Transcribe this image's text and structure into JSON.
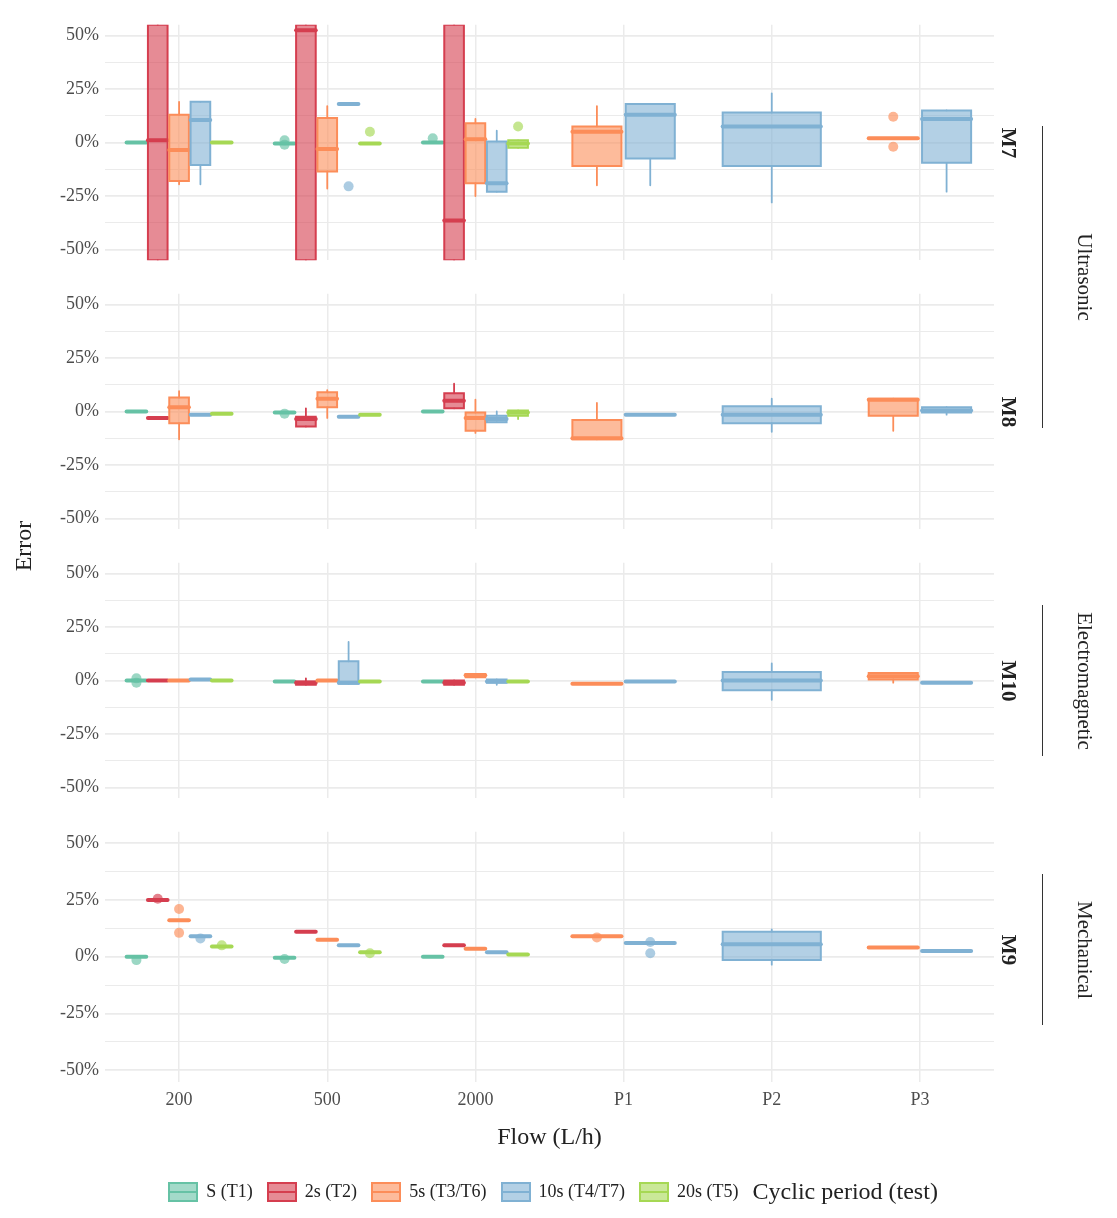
{
  "chart_data": [
    {
      "type": "box",
      "title": "M7",
      "categories": [
        null,
        null,
        null,
        null,
        null,
        null
      ],
      "ylim": [
        -55,
        55
      ],
      "yticks": [
        {
          "value": -50,
          "label": "-50%"
        },
        {
          "value": -37.5,
          "label": null
        },
        {
          "value": -25,
          "label": "-25%"
        },
        {
          "value": -12.5,
          "label": null
        },
        {
          "value": 0,
          "label": "0%"
        },
        {
          "value": 12.5,
          "label": null
        },
        {
          "value": 25,
          "label": "25%"
        },
        {
          "value": 37.5,
          "label": null
        },
        {
          "value": 50,
          "label": "50%"
        }
      ],
      "grid": true,
      "tick_labels": "y",
      "annotations": [
        "Ultrasonic"
      ],
      "series": [
        {
          "color": "#66c2a5",
          "boxes": [
            {
              "low": 0,
              "q1": 0,
              "median": 0,
              "q3": 0,
              "high": 0
            },
            {
              "low": -0.5,
              "q1": -0.5,
              "median": -0.5,
              "q3": -0.5,
              "high": -0.5,
              "outliers": [
                1,
                -1
              ]
            },
            {
              "low": 0,
              "q1": 0,
              "median": 0,
              "q3": 0,
              "high": 0,
              "outliers": [
                2
              ]
            },
            null,
            null,
            null
          ]
        },
        {
          "color": "#d53e4f",
          "boxes": [
            {
              "low": -55,
              "q1": -55,
              "median": 1,
              "q3": 55,
              "high": 55
            },
            {
              "low": -55,
              "q1": -55,
              "median": 52.5,
              "q3": 55,
              "high": 55
            },
            {
              "low": -55,
              "q1": -55,
              "median": -36.5,
              "q3": 55,
              "high": 55
            },
            null,
            null,
            null
          ]
        },
        {
          "color": "#fc8d59",
          "boxes": [
            {
              "low": -19.5,
              "q1": -18,
              "median": -3.5,
              "q3": 13,
              "high": 19
            },
            {
              "low": -21.5,
              "q1": -13.5,
              "median": -3,
              "q3": 11.5,
              "high": 17
            },
            {
              "low": -25,
              "q1": -19,
              "median": 1.5,
              "q3": 9,
              "high": 11
            },
            {
              "low": -20,
              "q1": -11,
              "median": 5,
              "q3": 7.5,
              "high": 17
            },
            null,
            {
              "low": 2,
              "q1": 2,
              "median": 2,
              "q3": 2,
              "high": 2,
              "outliers": [
                12,
                -2
              ]
            }
          ]
        },
        {
          "color": "#80b1d3",
          "boxes": [
            {
              "low": -19.5,
              "q1": -10.5,
              "median": 10.5,
              "q3": 19,
              "high": 19
            },
            {
              "low": 18,
              "q1": 18,
              "median": 18,
              "q3": 18,
              "high": 18,
              "outliers": [
                -20.5
              ]
            },
            {
              "low": -23,
              "q1": -23,
              "median": -19,
              "q3": 0.5,
              "high": 5.5
            },
            {
              "low": -20,
              "q1": -7.5,
              "median": 13,
              "q3": 18,
              "high": 18
            },
            {
              "low": -28,
              "q1": -11,
              "median": 7.5,
              "q3": 14,
              "high": 23
            },
            {
              "low": -23,
              "q1": -9.5,
              "median": 11,
              "q3": 15,
              "high": 15
            }
          ]
        },
        {
          "color": "#a6d854",
          "boxes": [
            {
              "low": 0,
              "q1": 0,
              "median": 0,
              "q3": 0,
              "high": 0
            },
            {
              "low": -0.5,
              "q1": -0.5,
              "median": -0.5,
              "q3": -0.5,
              "high": -0.5,
              "outliers": [
                5
              ]
            },
            {
              "low": -2.5,
              "q1": -2.5,
              "median": -0.5,
              "q3": 1,
              "high": 1,
              "outliers": [
                7.5
              ]
            },
            null,
            null,
            null
          ]
        }
      ]
    },
    {
      "type": "box",
      "title": "M8",
      "categories": [
        null,
        null,
        null,
        null,
        null,
        null
      ],
      "ylim": [
        -55,
        55
      ],
      "yticks": [
        {
          "value": -50,
          "label": "-50%"
        },
        {
          "value": -37.5,
          "label": null
        },
        {
          "value": -25,
          "label": "-25%"
        },
        {
          "value": -12.5,
          "label": null
        },
        {
          "value": 0,
          "label": "0%"
        },
        {
          "value": 12.5,
          "label": null
        },
        {
          "value": 25,
          "label": "25%"
        },
        {
          "value": 37.5,
          "label": null
        },
        {
          "value": 50,
          "label": "50%"
        }
      ],
      "grid": true,
      "tick_labels": "y",
      "ylabel": "Error",
      "series": [
        {
          "color": "#66c2a5",
          "boxes": [
            {
              "low": 0,
              "q1": 0,
              "median": 0,
              "q3": 0,
              "high": 0
            },
            {
              "low": -0.5,
              "q1": -0.5,
              "median": -0.5,
              "q3": -0.5,
              "high": -0.5,
              "outliers": [
                -1
              ]
            },
            {
              "low": 0,
              "q1": 0,
              "median": 0,
              "q3": 0,
              "high": 0
            },
            null,
            null,
            null
          ]
        },
        {
          "color": "#d53e4f",
          "boxes": [
            {
              "low": -3,
              "q1": -3,
              "median": -3,
              "q3": -3,
              "high": -3
            },
            {
              "low": -7,
              "q1": -7,
              "median": -3.5,
              "q3": -2.5,
              "high": 1.5
            },
            {
              "low": 1.5,
              "q1": 1.5,
              "median": 5,
              "q3": 8.5,
              "high": 13
            },
            null,
            null,
            null
          ]
        },
        {
          "color": "#fc8d59",
          "boxes": [
            {
              "low": -13,
              "q1": -5.5,
              "median": 2,
              "q3": 6.5,
              "high": 9.5
            },
            {
              "low": -3,
              "q1": 2,
              "median": 6,
              "q3": 9,
              "high": 10
            },
            {
              "low": -10,
              "q1": -9,
              "median": -3,
              "q3": -0.5,
              "high": 5.5
            },
            {
              "low": -13,
              "q1": -13,
              "median": -12.5,
              "q3": -4,
              "high": 4
            },
            null,
            {
              "low": -9,
              "q1": -2,
              "median": 5.5,
              "q3": 6,
              "high": 6
            }
          ]
        },
        {
          "color": "#80b1d3",
          "boxes": [
            {
              "low": -1.5,
              "q1": -1.5,
              "median": -1.5,
              "q3": -1.5,
              "high": -1.5
            },
            {
              "low": -2.5,
              "q1": -2.5,
              "median": -2.5,
              "q3": -2.5,
              "high": -2.5
            },
            {
              "low": -5,
              "q1": -5,
              "median": -3.5,
              "q3": -2,
              "high": 0
            },
            {
              "low": -1.5,
              "q1": -1.5,
              "median": -1.5,
              "q3": -1.5,
              "high": -1.5
            },
            {
              "low": -9.5,
              "q1": -5.5,
              "median": -1.5,
              "q3": 2.5,
              "high": 6
            },
            {
              "low": -1.5,
              "q1": -0.5,
              "median": 0.5,
              "q3": 2,
              "high": 2
            }
          ]
        },
        {
          "color": "#a6d854",
          "boxes": [
            {
              "low": -1,
              "q1": -1,
              "median": -1,
              "q3": -1,
              "high": -1
            },
            {
              "low": -1.5,
              "q1": -1.5,
              "median": -1.5,
              "q3": -1.5,
              "high": -1.5
            },
            {
              "low": -3.5,
              "q1": -2,
              "median": -0.5,
              "q3": 0.5,
              "high": 0.5
            },
            null,
            null,
            null
          ]
        }
      ]
    },
    {
      "type": "box",
      "title": "M10",
      "categories": [
        null,
        null,
        null,
        null,
        null,
        null
      ],
      "ylim": [
        -55,
        55
      ],
      "yticks": [
        {
          "value": -50,
          "label": "-50%"
        },
        {
          "value": -37.5,
          "label": null
        },
        {
          "value": -25,
          "label": "-25%"
        },
        {
          "value": -12.5,
          "label": null
        },
        {
          "value": 0,
          "label": "0%"
        },
        {
          "value": 12.5,
          "label": null
        },
        {
          "value": 25,
          "label": "25%"
        },
        {
          "value": 37.5,
          "label": null
        },
        {
          "value": 50,
          "label": "50%"
        }
      ],
      "grid": true,
      "tick_labels": "y",
      "annotations": [
        "Electromagnetic"
      ],
      "series": [
        {
          "color": "#66c2a5",
          "boxes": [
            {
              "low": 0,
              "q1": 0,
              "median": 0,
              "q3": 0,
              "high": 0,
              "outliers": [
                1,
                -1
              ]
            },
            {
              "low": -0.5,
              "q1": -0.5,
              "median": -0.5,
              "q3": -0.5,
              "high": -0.5
            },
            {
              "low": -0.5,
              "q1": -0.5,
              "median": -0.5,
              "q3": -0.5,
              "high": -0.5
            },
            null,
            null,
            null
          ]
        },
        {
          "color": "#d53e4f",
          "boxes": [
            {
              "low": 0,
              "q1": 0,
              "median": 0,
              "q3": 0,
              "high": 0
            },
            {
              "low": -2,
              "q1": -2,
              "median": -1,
              "q3": -0.5,
              "high": 1
            },
            {
              "low": -2,
              "q1": -2,
              "median": -1,
              "q3": 0,
              "high": 0
            },
            null,
            null,
            null
          ]
        },
        {
          "color": "#fc8d59",
          "boxes": [
            {
              "low": 0,
              "q1": 0,
              "median": 0,
              "q3": 0,
              "high": 0
            },
            {
              "low": 0,
              "q1": 0,
              "median": 0,
              "q3": 0,
              "high": 0
            },
            {
              "low": 1.5,
              "q1": 1.5,
              "median": 2.5,
              "q3": 3,
              "high": 3
            },
            {
              "low": -1.5,
              "q1": -1.5,
              "median": -1.5,
              "q3": -1.5,
              "high": -1.5
            },
            null,
            {
              "low": -1,
              "q1": 0.5,
              "median": 2,
              "q3": 3.5,
              "high": 3.5
            }
          ]
        },
        {
          "color": "#80b1d3",
          "boxes": [
            {
              "low": 0.5,
              "q1": 0.5,
              "median": 0.5,
              "q3": 0.5,
              "high": 0.5
            },
            {
              "low": -1.5,
              "q1": -1.5,
              "median": -1,
              "q3": 9,
              "high": 18
            },
            {
              "low": -2,
              "q1": -1,
              "median": -0.5,
              "q3": 0.5,
              "high": 0.5
            },
            {
              "low": -0.5,
              "q1": -0.5,
              "median": -0.5,
              "q3": -0.5,
              "high": -0.5
            },
            {
              "low": -9,
              "q1": -4.5,
              "median": 0,
              "q3": 4,
              "high": 8
            },
            {
              "low": -1,
              "q1": -1,
              "median": -1,
              "q3": -1,
              "high": -1
            }
          ]
        },
        {
          "color": "#a6d854",
          "boxes": [
            {
              "low": 0,
              "q1": 0,
              "median": 0,
              "q3": 0,
              "high": 0
            },
            {
              "low": -0.5,
              "q1": -0.5,
              "median": -0.5,
              "q3": -0.5,
              "high": -0.5
            },
            {
              "low": -0.5,
              "q1": -0.5,
              "median": -0.5,
              "q3": -0.5,
              "high": -0.5
            },
            null,
            null,
            null
          ]
        }
      ]
    },
    {
      "type": "box",
      "title": "M9",
      "categories": [
        "200",
        "500",
        "2000",
        "P1",
        "P2",
        "P3"
      ],
      "ylim": [
        -55,
        55
      ],
      "yticks": [
        {
          "value": -50,
          "label": "-50%"
        },
        {
          "value": -37.5,
          "label": null
        },
        {
          "value": -25,
          "label": "-25%"
        },
        {
          "value": -12.5,
          "label": null
        },
        {
          "value": 0,
          "label": "0%"
        },
        {
          "value": 12.5,
          "label": null
        },
        {
          "value": 25,
          "label": "25%"
        },
        {
          "value": 37.5,
          "label": null
        },
        {
          "value": 50,
          "label": "50%"
        }
      ],
      "grid": true,
      "annotations": [
        "Mechanical"
      ],
      "xlabel": "Flow (L/h)",
      "legend": "bottom",
      "legend_title": "Cyclic period (test)",
      "series": [
        {
          "name": "S (T1)",
          "color": "#66c2a5",
          "boxes": [
            {
              "low": 0,
              "q1": 0,
              "median": 0,
              "q3": 0,
              "high": 0,
              "outliers": [
                -1.5
              ]
            },
            {
              "low": -0.5,
              "q1": -0.5,
              "median": -0.5,
              "q3": -0.5,
              "high": -0.5,
              "outliers": [
                -1
              ]
            },
            {
              "low": 0,
              "q1": 0,
              "median": 0,
              "q3": 0,
              "high": 0
            },
            null,
            null,
            null
          ]
        },
        {
          "name": "2s (T2)",
          "color": "#d53e4f",
          "boxes": [
            {
              "low": 25,
              "q1": 25,
              "median": 25,
              "q3": 25,
              "high": 25,
              "outliers": [
                25.5
              ]
            },
            {
              "low": 11,
              "q1": 11,
              "median": 11,
              "q3": 11,
              "high": 11
            },
            {
              "low": 5,
              "q1": 5,
              "median": 5,
              "q3": 5,
              "high": 5
            },
            null,
            null,
            null
          ]
        },
        {
          "name": "5s (T3/T6)",
          "color": "#fc8d59",
          "boxes": [
            {
              "low": 16,
              "q1": 16,
              "median": 16,
              "q3": 16,
              "high": 16,
              "outliers": [
                21,
                10.5
              ]
            },
            {
              "low": 7.5,
              "q1": 7.5,
              "median": 7.5,
              "q3": 7.5,
              "high": 7.5
            },
            {
              "low": 3.5,
              "q1": 3.5,
              "median": 3.5,
              "q3": 3.5,
              "high": 3.5
            },
            {
              "low": 9,
              "q1": 9,
              "median": 9,
              "q3": 9,
              "high": 9,
              "outliers": [
                8.5
              ]
            },
            null,
            {
              "low": 4,
              "q1": 4,
              "median": 4,
              "q3": 4,
              "high": 4
            }
          ]
        },
        {
          "name": "10s (T4/T7)",
          "color": "#80b1d3",
          "boxes": [
            {
              "low": 9,
              "q1": 9,
              "median": 9,
              "q3": 9,
              "high": 9,
              "outliers": [
                8
              ]
            },
            {
              "low": 5,
              "q1": 5,
              "median": 5,
              "q3": 5,
              "high": 5
            },
            {
              "low": 2,
              "q1": 2,
              "median": 2,
              "q3": 2,
              "high": 2
            },
            {
              "low": 6,
              "q1": 6,
              "median": 6,
              "q3": 6,
              "high": 6,
              "outliers": [
                6.5,
                1.5
              ]
            },
            {
              "low": -3.5,
              "q1": -1.5,
              "median": 5.5,
              "q3": 11,
              "high": 12
            },
            {
              "low": 2.5,
              "q1": 2.5,
              "median": 2.5,
              "q3": 2.5,
              "high": 2.5
            }
          ]
        },
        {
          "name": "20s (T5)",
          "color": "#a6d854",
          "boxes": [
            {
              "low": 4.5,
              "q1": 4.5,
              "median": 4.5,
              "q3": 4.5,
              "high": 4.5,
              "outliers": [
                5
              ]
            },
            {
              "low": 2,
              "q1": 2,
              "median": 2,
              "q3": 2,
              "high": 2,
              "outliers": [
                1.5
              ]
            },
            {
              "low": 1,
              "q1": 1,
              "median": 1,
              "q3": 1,
              "high": 1
            },
            null,
            null,
            null
          ]
        }
      ]
    }
  ]
}
